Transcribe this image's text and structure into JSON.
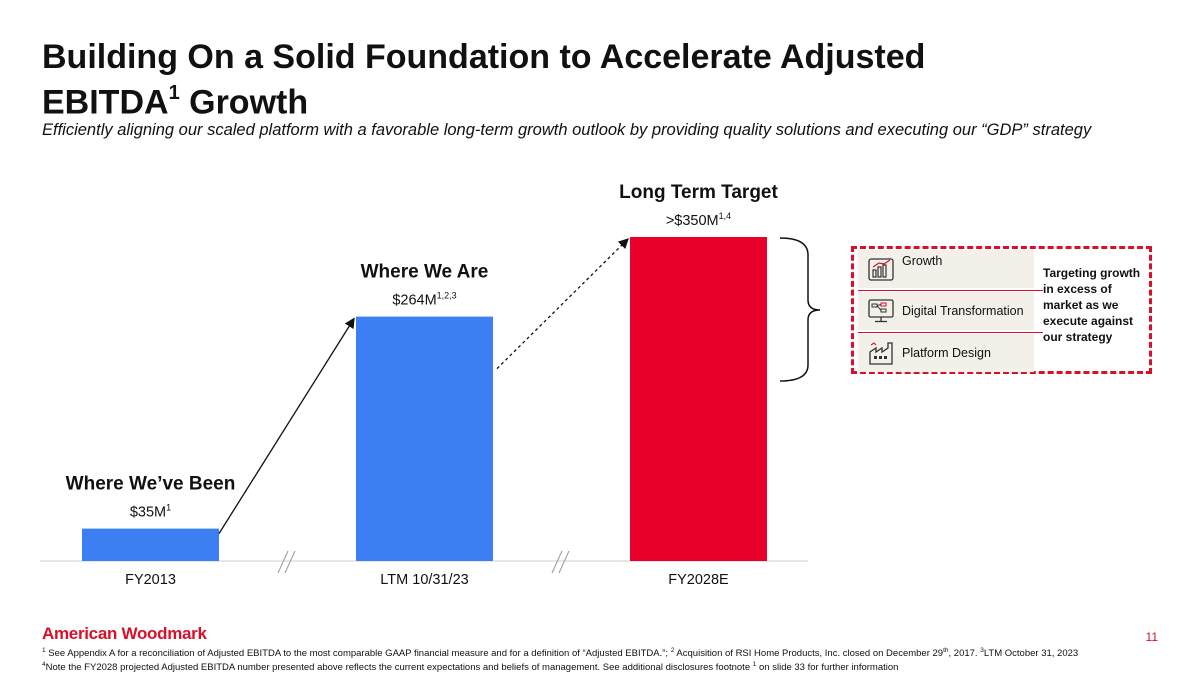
{
  "slide": {
    "title_line1": "Building On a Solid Foundation to Accelerate Adjusted",
    "title_line2_main": "EBITDA",
    "title_line2_sup": "1",
    "title_line2_rest": " Growth",
    "subtitle": "Efficiently aligning our scaled platform with a favorable long-term growth outlook by providing quality solutions and executing our “GDP” strategy",
    "page_number": "11",
    "logo_text": "American Woodmark"
  },
  "chart_data": {
    "type": "bar",
    "categories": [
      "FY2013",
      "LTM 10/31/23",
      "FY2028E"
    ],
    "values": [
      35,
      264,
      350
    ],
    "value_units": "$M",
    "headings": [
      "Where We’ve Been",
      "Where We Are",
      "Long Term Target"
    ],
    "value_labels": [
      {
        "text": "$35M",
        "sup": "1"
      },
      {
        "text": "$264M",
        "sup": "1,2,3"
      },
      {
        "text": ">$350M",
        "sup": "1,4"
      }
    ],
    "colors": [
      "#3b7ff2",
      "#3b7ff2",
      "#e8002a"
    ],
    "axis_breaks": true,
    "xlabel": "",
    "ylabel": ""
  },
  "gdp_panel": {
    "items": [
      {
        "label": "Growth",
        "icon": "growth-chart-icon"
      },
      {
        "label": "Digital Transformation",
        "icon": "digital-flow-icon"
      },
      {
        "label": "Platform Design",
        "icon": "factory-icon"
      }
    ],
    "note": "Targeting growth in excess of market as we execute against our strategy",
    "border_color": "#d8102a"
  },
  "footnotes": {
    "line1_a": "1",
    "line1_b": " See Appendix A for a reconciliation of Adjusted EBITDA to the most comparable GAAP financial measure and for a definition of “Adjusted EBITDA.”; ",
    "line1_c": "2",
    "line1_d": " Acquisition of RSI Home Products, Inc. closed on December 29",
    "line1_e": "th",
    "line1_f": ", 2017.  ",
    "line1_g": "3",
    "line1_h": "LTM October 31, 2023",
    "line2_a": "4",
    "line2_b": "Note the FY2028 projected Adjusted EBITDA number presented above reflects the current expectations and beliefs of management. See additional disclosures footnote ",
    "line2_c": "1",
    "line2_d": " on slide 33 for further information"
  }
}
